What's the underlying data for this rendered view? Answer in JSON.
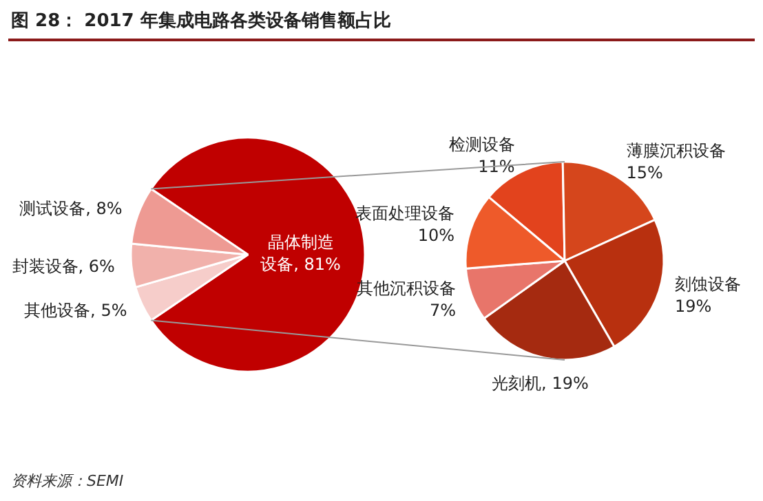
{
  "chart_data": [
    {
      "type": "pie",
      "title": "图 28： 2017 年集成电路各类设备销售额占比",
      "annotations": [
        "资料来源：SEMI"
      ],
      "categories": [
        "晶体制造设备",
        "其他设备",
        "封装设备",
        "测试设备"
      ],
      "values": [
        81,
        5,
        6,
        8
      ],
      "value_labels": [
        "81%",
        "5%",
        "6%",
        "8%"
      ],
      "colors": [
        "#c00000",
        "#f6cdca",
        "#f1b1ab",
        "#ee9a93"
      ]
    },
    {
      "type": "pie",
      "categories": [
        "检测设备",
        "薄膜沉积设备",
        "刻蚀设备",
        "光刻机",
        "其他沉积设备",
        "表面处理设备"
      ],
      "values": [
        11,
        15,
        19,
        19,
        7,
        10
      ],
      "value_labels": [
        "11%",
        "15%",
        "19%",
        "19%",
        "7%",
        "10%"
      ],
      "colors": [
        "#e2431d",
        "#d5461c",
        "#b8300f",
        "#a52a10",
        "#e8756a",
        "#ee5a2a"
      ]
    }
  ]
}
